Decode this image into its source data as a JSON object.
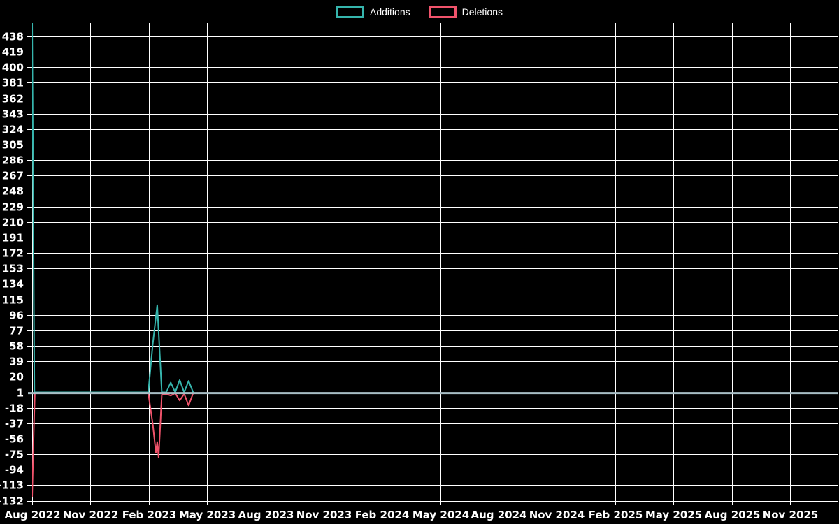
{
  "legend": {
    "items": [
      {
        "label": "Additions",
        "color": "#36b5ad"
      },
      {
        "label": "Deletions",
        "color": "#f0536b"
      }
    ]
  },
  "chart_data": {
    "type": "line",
    "title": "",
    "background_color": "#000000",
    "grid": true,
    "grid_color": "#ffffff",
    "text_color": "#ffffff",
    "legend_position": "top-center",
    "x_axis": {
      "tick_labels": [
        "Aug 2022",
        "Nov 2022",
        "Feb 2023",
        "May 2023",
        "Aug 2023",
        "Nov 2023",
        "Feb 2024",
        "May 2024",
        "Aug 2024",
        "Nov 2024",
        "Feb 2025",
        "May 2025",
        "Aug 2025",
        "Nov 2025"
      ],
      "weeks_per_tick": 13
    },
    "y_axis": {
      "min": -132,
      "max": 438,
      "tick_step": 19,
      "ticks": [
        438,
        419,
        400,
        381,
        362,
        343,
        324,
        305,
        286,
        267,
        248,
        229,
        210,
        191,
        172,
        153,
        134,
        115,
        96,
        77,
        58,
        39,
        20,
        1,
        -18,
        -37,
        -56,
        -75,
        -94,
        -113,
        -132
      ]
    },
    "zero_line": {
      "value": 0,
      "color": "#a8bec5",
      "width": 3
    },
    "series": [
      {
        "name": "Additions",
        "color": "#36b5ad",
        "points": [
          [
            0,
            457
          ],
          [
            0.5,
            1
          ],
          [
            25.9,
            1
          ],
          [
            26.9,
            60
          ],
          [
            27.9,
            108
          ],
          [
            28.9,
            1
          ],
          [
            29.9,
            1
          ],
          [
            30.9,
            13
          ],
          [
            31.9,
            1
          ],
          [
            32.9,
            16
          ],
          [
            33.9,
            1
          ],
          [
            34.9,
            15
          ],
          [
            35.9,
            1
          ]
        ]
      },
      {
        "name": "Deletions",
        "color": "#f0536b",
        "points": [
          [
            0,
            -127
          ],
          [
            0.3,
            -60
          ],
          [
            0.6,
            0
          ],
          [
            25.9,
            0
          ],
          [
            26.9,
            -38
          ],
          [
            27.6,
            -73
          ],
          [
            27.9,
            -60
          ],
          [
            28.2,
            -79
          ],
          [
            28.9,
            -2
          ],
          [
            29.9,
            -1
          ],
          [
            30.9,
            -3
          ],
          [
            31.9,
            0
          ],
          [
            32.9,
            -9
          ],
          [
            33.9,
            -1
          ],
          [
            34.9,
            -15
          ],
          [
            35.9,
            0
          ]
        ]
      }
    ]
  }
}
